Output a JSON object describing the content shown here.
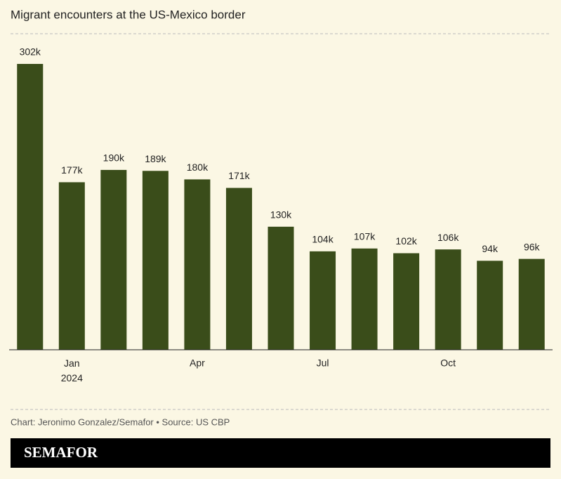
{
  "chart_data": {
    "type": "bar",
    "title": "Migrant encounters at the US-Mexico border",
    "categories": [
      null,
      "Jan 2024",
      null,
      null,
      "Apr",
      null,
      null,
      "Jul",
      null,
      null,
      "Oct",
      null,
      null
    ],
    "values": [
      302,
      177,
      190,
      189,
      180,
      171,
      130,
      104,
      107,
      102,
      106,
      94,
      96
    ],
    "value_labels": [
      "302k",
      "177k",
      "190k",
      "189k",
      "180k",
      "171k",
      "130k",
      "104k",
      "107k",
      "102k",
      "106k",
      "94k",
      "96k"
    ],
    "color": "#3a4d1a",
    "source": "Chart: Jeronimo Gonzalez/Semafor • Source: US CBP",
    "brand": "SEMAFOR"
  }
}
